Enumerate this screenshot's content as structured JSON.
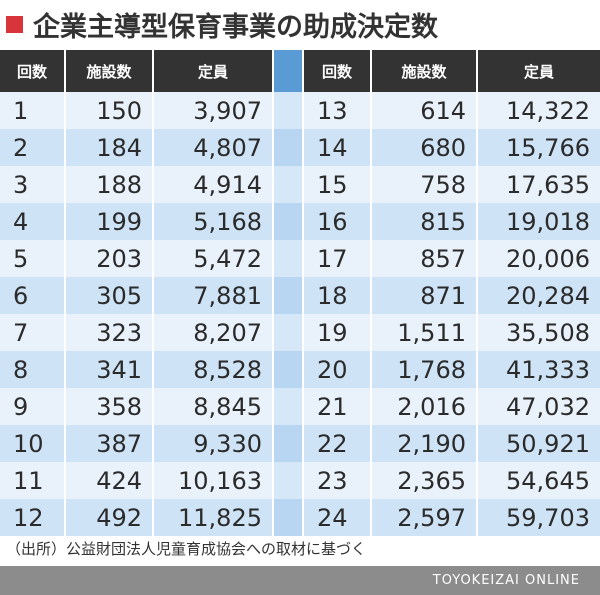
{
  "title": "企業主導型保育事業の助成決定数",
  "headers": {
    "round": "回数",
    "facilities": "施設数",
    "capacity": "定員"
  },
  "left_rows": [
    {
      "round": "1",
      "facilities": "150",
      "capacity": "3,907"
    },
    {
      "round": "2",
      "facilities": "184",
      "capacity": "4,807"
    },
    {
      "round": "3",
      "facilities": "188",
      "capacity": "4,914"
    },
    {
      "round": "4",
      "facilities": "199",
      "capacity": "5,168"
    },
    {
      "round": "5",
      "facilities": "203",
      "capacity": "5,472"
    },
    {
      "round": "6",
      "facilities": "305",
      "capacity": "7,881"
    },
    {
      "round": "7",
      "facilities": "323",
      "capacity": "8,207"
    },
    {
      "round": "8",
      "facilities": "341",
      "capacity": "8,528"
    },
    {
      "round": "9",
      "facilities": "358",
      "capacity": "8,845"
    },
    {
      "round": "10",
      "facilities": "387",
      "capacity": "9,330"
    },
    {
      "round": "11",
      "facilities": "424",
      "capacity": "10,163"
    },
    {
      "round": "12",
      "facilities": "492",
      "capacity": "11,825"
    }
  ],
  "right_rows": [
    {
      "round": "13",
      "facilities": "614",
      "capacity": "14,322"
    },
    {
      "round": "14",
      "facilities": "680",
      "capacity": "15,766"
    },
    {
      "round": "15",
      "facilities": "758",
      "capacity": "17,635"
    },
    {
      "round": "16",
      "facilities": "815",
      "capacity": "19,018"
    },
    {
      "round": "17",
      "facilities": "857",
      "capacity": "20,006"
    },
    {
      "round": "18",
      "facilities": "871",
      "capacity": "20,284"
    },
    {
      "round": "19",
      "facilities": "1,511",
      "capacity": "35,508"
    },
    {
      "round": "20",
      "facilities": "1,768",
      "capacity": "41,333"
    },
    {
      "round": "21",
      "facilities": "2,016",
      "capacity": "47,032"
    },
    {
      "round": "22",
      "facilities": "2,190",
      "capacity": "50,921"
    },
    {
      "round": "23",
      "facilities": "2,365",
      "capacity": "54,645"
    },
    {
      "round": "24",
      "facilities": "2,597",
      "capacity": "59,703"
    }
  ],
  "source": "（出所）公益財団法人児童育成協会への取材に基づく",
  "footer": "TOYOKEIZAI ONLINE",
  "colors": {
    "title_mark": "#d8353b",
    "header_bg": "#333333",
    "divider_header": "#5b9bd5",
    "row_light": "#e9f2fb",
    "row_dark": "#cfe3f6"
  }
}
